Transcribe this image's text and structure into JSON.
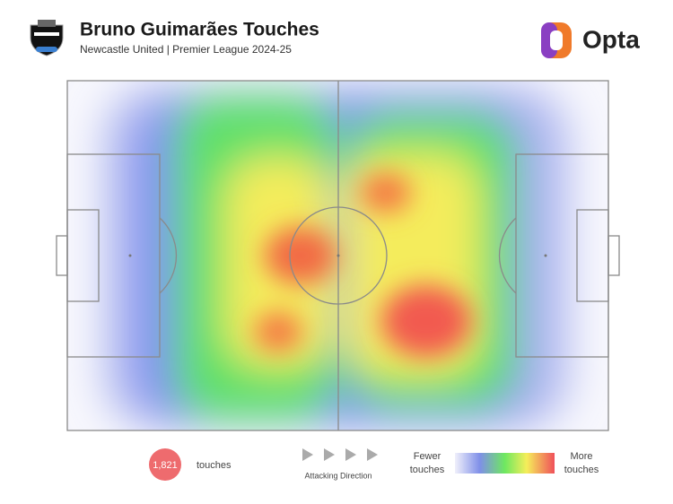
{
  "header": {
    "title": "Bruno Guimarães Touches",
    "subtitle": "Newcastle United | Premier League 2024-25",
    "brand": "Opta"
  },
  "footer": {
    "touches_count": "1,821",
    "touches_label": "touches",
    "direction_label": "Attacking Direction",
    "legend_low": "Fewer touches",
    "legend_high": "More touches"
  }
}
